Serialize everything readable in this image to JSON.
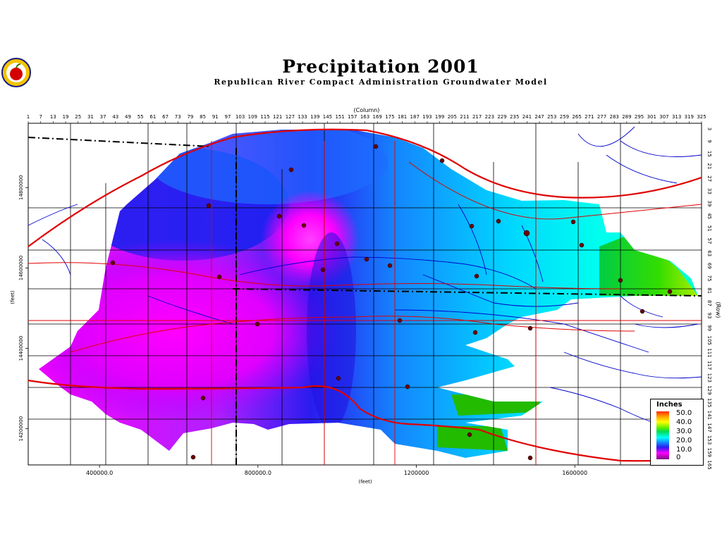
{
  "header": {
    "title": "Precipitation 2001",
    "subtitle": "Republican River Compact Administration Groundwater Model"
  },
  "axes": {
    "column_label": "(Column)",
    "row_label": "(Row)",
    "x_label": "(feet)",
    "y_label": "(feet)",
    "column_ticks": [
      "1",
      "7",
      "13",
      "19",
      "25",
      "31",
      "37",
      "43",
      "49",
      "55",
      "61",
      "67",
      "73",
      "79",
      "85",
      "91",
      "97",
      "103",
      "109",
      "115",
      "121",
      "127",
      "133",
      "139",
      "145",
      "151",
      "157",
      "163",
      "169",
      "175",
      "181",
      "187",
      "193",
      "199",
      "205",
      "211",
      "217",
      "223",
      "229",
      "235",
      "241",
      "247",
      "253",
      "259",
      "265",
      "271",
      "277",
      "283",
      "289",
      "295",
      "301",
      "307",
      "313",
      "319",
      "325"
    ],
    "row_ticks": [
      "3",
      "9",
      "15",
      "21",
      "27",
      "33",
      "39",
      "45",
      "51",
      "57",
      "63",
      "69",
      "75",
      "81",
      "87",
      "93",
      "99",
      "105",
      "111",
      "117",
      "123",
      "129",
      "135",
      "141",
      "147",
      "153",
      "159",
      "165"
    ],
    "x_ticks": [
      {
        "label": "400000.0",
        "x": 400000
      },
      {
        "label": "800000.0",
        "x": 800000
      },
      {
        "label": "1200000",
        "x": 1200000
      },
      {
        "label": "1600000",
        "x": 1600000
      }
    ],
    "y_ticks": [
      {
        "label": "14800000",
        "y": 14800000
      },
      {
        "label": "14600000",
        "y": 14600000
      },
      {
        "label": "14400000",
        "y": 14400000
      },
      {
        "label": "14200000",
        "y": 14200000
      }
    ],
    "x_range": [
      220000,
      1920000
    ],
    "y_range": [
      14110000,
      14960000
    ]
  },
  "legend": {
    "title": "Inches",
    "labels": [
      "50.0",
      "40.0",
      "30.0",
      "20.0",
      "10.0",
      "0"
    ]
  },
  "colors": {
    "roads": "#e00000",
    "rivers": "#0000cc",
    "high": "#00cc44",
    "mid": "#00e8ff",
    "low": "#1030ff",
    "min": "#ff00ff"
  }
}
